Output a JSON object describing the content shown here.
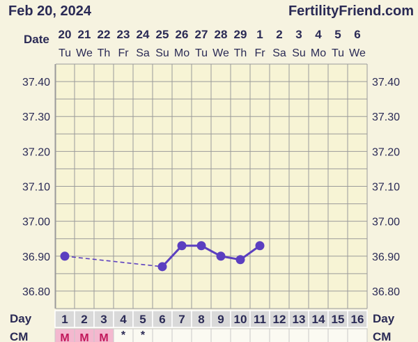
{
  "header": {
    "date_title": "Feb 20, 2024",
    "brand": "FertilityFriend.com",
    "date_row_label": "Date",
    "day_row_label": "Day",
    "cm_row_label": "CM"
  },
  "colors": {
    "background": "#f6f3e0",
    "plot_bg": "#f7f4d5",
    "grid": "#9a9a9a",
    "line": "#5b3fc0",
    "text": "#2a2a55",
    "cycleday_bg": "#d9d9d9",
    "menses_bg": "#f4b8cf",
    "menses_text": "#c2185b"
  },
  "chart_data": {
    "type": "line",
    "dates": [
      "20",
      "21",
      "22",
      "23",
      "24",
      "25",
      "26",
      "27",
      "28",
      "29",
      "1",
      "2",
      "3",
      "4",
      "5",
      "6"
    ],
    "weekdays": [
      "Tu",
      "We",
      "Th",
      "Fr",
      "Sa",
      "Su",
      "Mo",
      "Tu",
      "We",
      "Th",
      "Fr",
      "Sa",
      "Su",
      "Mo",
      "Tu",
      "We"
    ],
    "cycle_days": [
      1,
      2,
      3,
      4,
      5,
      6,
      7,
      8,
      9,
      10,
      11,
      12,
      13,
      14,
      15,
      16
    ],
    "yticks": [
      "36.80",
      "36.90",
      "37.00",
      "37.10",
      "37.20",
      "37.30",
      "37.40"
    ],
    "ylim": [
      36.75,
      37.45
    ],
    "grid": true,
    "series": [
      {
        "values": [
          36.9,
          null,
          null,
          null,
          null,
          36.87,
          36.93,
          36.93,
          36.9,
          36.89,
          36.93,
          null,
          null,
          null,
          null,
          null
        ],
        "dashed_gap": [
          1,
          6
        ]
      }
    ],
    "cm": [
      "M",
      "M",
      "M",
      "*",
      "*",
      "",
      "",
      "",
      "",
      "",
      "",
      "",
      "",
      "",
      "",
      ""
    ]
  }
}
